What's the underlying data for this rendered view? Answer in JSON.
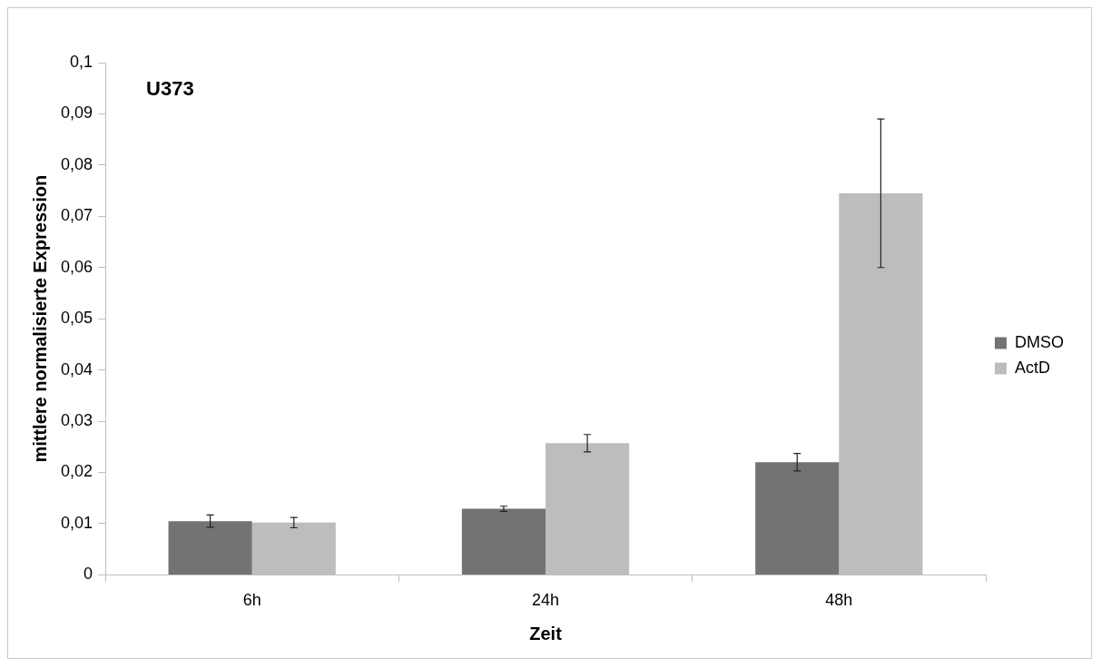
{
  "chart_data": {
    "type": "bar",
    "title": "U373",
    "xlabel": "Zeit",
    "ylabel": "mittlere normalisierte Expression",
    "categories": [
      "6h",
      "24h",
      "48h"
    ],
    "series": [
      {
        "name": "DMSO",
        "color": "#737373",
        "values": [
          0.0105,
          0.0129,
          0.022
        ],
        "errors": [
          0.0012,
          0.0005,
          0.0017
        ]
      },
      {
        "name": "ActD",
        "color": "#bdbdbd",
        "values": [
          0.0102,
          0.0257,
          0.0745
        ],
        "errors": [
          0.001,
          0.0017,
          0.0145
        ]
      }
    ],
    "ylim": [
      0,
      0.1
    ],
    "yticks": [
      0,
      {
        "value": 0.01,
        "label": "0,01"
      },
      {
        "value": 0.02,
        "label": "0,02"
      },
      {
        "value": 0.03,
        "label": "0,03"
      },
      {
        "value": 0.04,
        "label": "0,04"
      },
      {
        "value": 0.05,
        "label": "0,05"
      },
      {
        "value": 0.06,
        "label": "0,06"
      },
      {
        "value": 0.07,
        "label": "0,07"
      },
      {
        "value": 0.08,
        "label": "0,08"
      },
      {
        "value": 0.09,
        "label": "0,09"
      },
      {
        "value": 0.1,
        "label": "0,1"
      }
    ],
    "grid": false,
    "legend": "right"
  }
}
